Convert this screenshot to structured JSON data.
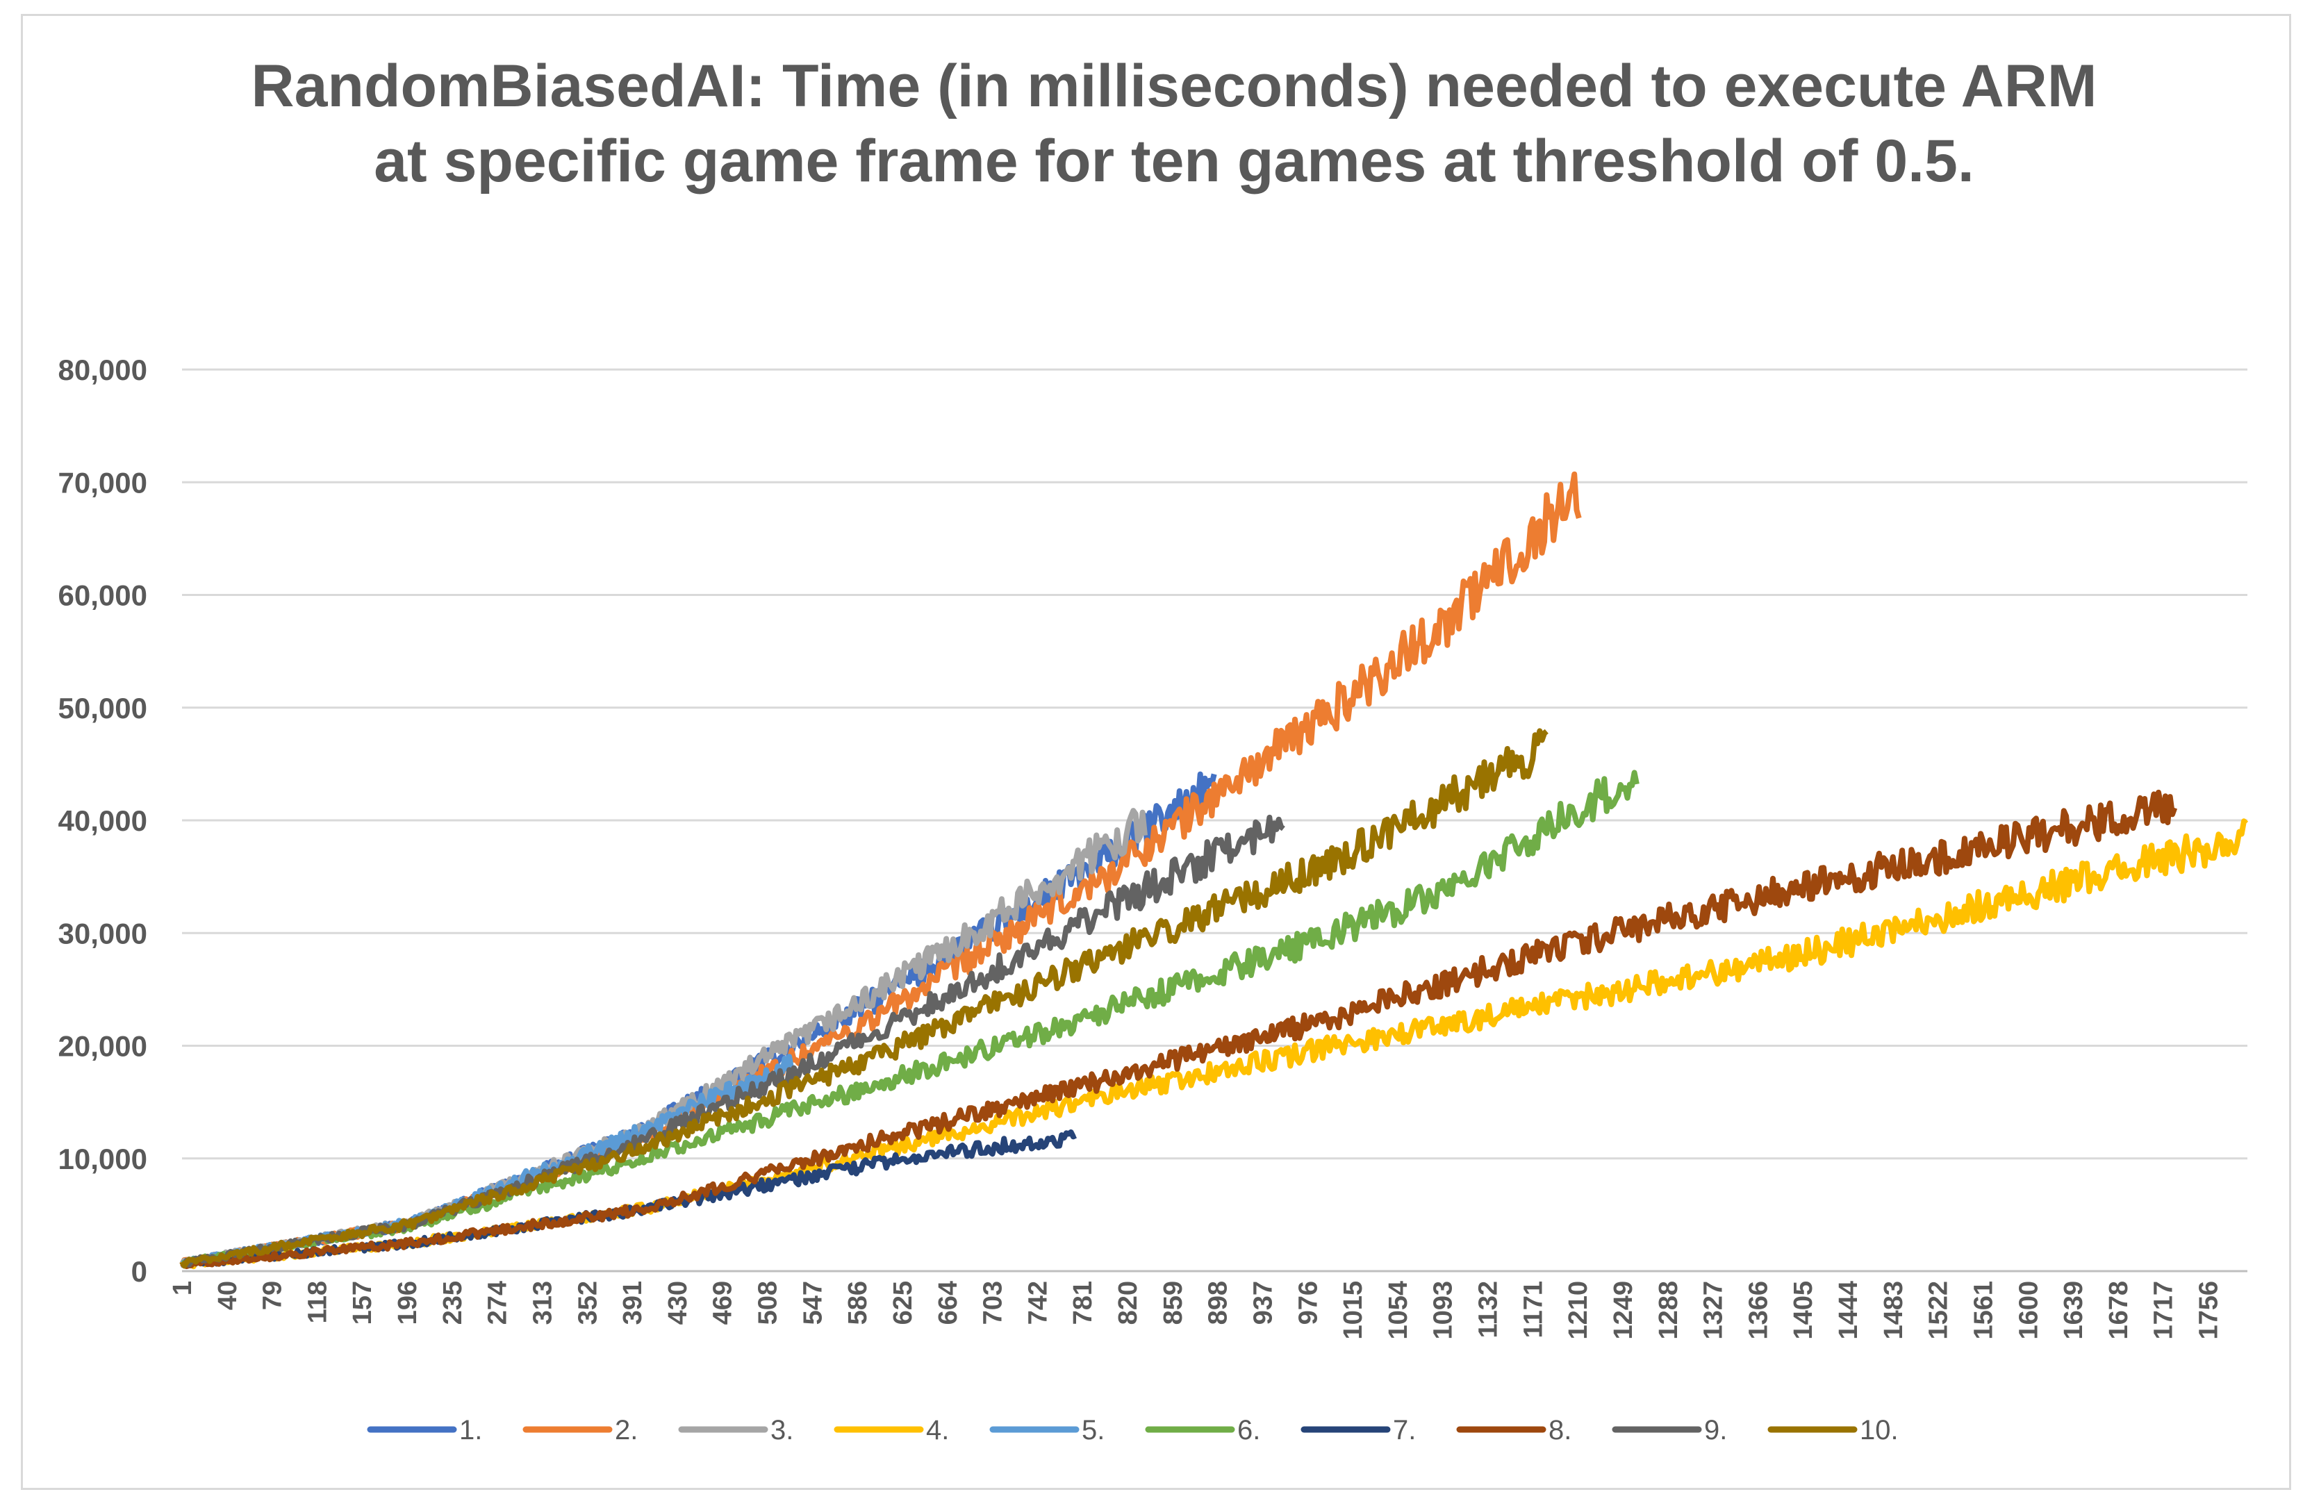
{
  "chart_data": {
    "type": "line",
    "title": "RandomBiasedAI: Time (in milliseconds) needed to execute ARM at specific game frame for ten games at threshold of 0.5.",
    "xlabel": "",
    "ylabel": "",
    "ylim": [
      0,
      80000
    ],
    "xlim": [
      1,
      1790
    ],
    "y_ticks": [
      "0",
      "10,000",
      "20,000",
      "30,000",
      "40,000",
      "50,000",
      "60,000",
      "70,000",
      "80,000"
    ],
    "y_tick_values": [
      0,
      10000,
      20000,
      30000,
      40000,
      50000,
      60000,
      70000,
      80000
    ],
    "x_ticks": [
      "1",
      "40",
      "79",
      "118",
      "157",
      "196",
      "235",
      "274",
      "313",
      "352",
      "391",
      "430",
      "469",
      "508",
      "547",
      "586",
      "625",
      "664",
      "703",
      "742",
      "781",
      "820",
      "859",
      "898",
      "937",
      "976",
      "1015",
      "1054",
      "1093",
      "1132",
      "1171",
      "1210",
      "1249",
      "1288",
      "1327",
      "1366",
      "1405",
      "1444",
      "1483",
      "1522",
      "1561",
      "1600",
      "1639",
      "1678",
      "1717",
      "1756"
    ],
    "grid": true,
    "legend_position": "bottom",
    "series": [
      {
        "name": "1.",
        "color": "#4472c4",
        "x": [
          1,
          200,
          400,
          600,
          800,
          895
        ],
        "y": [
          700,
          4200,
          12500,
          24000,
          36500,
          43500
        ]
      },
      {
        "name": "2.",
        "color": "#ed7d31",
        "x": [
          1,
          200,
          400,
          600,
          800,
          1000,
          1100,
          1212
        ],
        "y": [
          700,
          4200,
          12000,
          22500,
          35000,
          50000,
          58000,
          69500
        ]
      },
      {
        "name": "3.",
        "color": "#a5a5a5",
        "x": [
          1,
          200,
          400,
          600,
          700,
          836
        ],
        "y": [
          700,
          4300,
          12500,
          24500,
          31000,
          40000
        ]
      },
      {
        "name": "4.",
        "color": "#ffc000",
        "x": [
          1,
          200,
          400,
          600,
          800,
          1000,
          1200,
          1400,
          1600,
          1790
        ],
        "y": [
          600,
          2500,
          5500,
          10500,
          15500,
          20000,
          24000,
          28000,
          33500,
          38500
        ]
      },
      {
        "name": "5.",
        "color": "#5b9bd5",
        "x": [
          1,
          200,
          400,
          530
        ],
        "y": [
          700,
          4300,
          12500,
          18500
        ]
      },
      {
        "name": "6.",
        "color": "#70ad47",
        "x": [
          1,
          200,
          400,
          600,
          800,
          1000,
          1100,
          1262
        ],
        "y": [
          700,
          4000,
          10000,
          16500,
          23000,
          30000,
          34000,
          44000
        ]
      },
      {
        "name": "7.",
        "color": "#264478",
        "x": [
          1,
          200,
          400,
          600,
          700,
          776
        ],
        "y": [
          600,
          2500,
          5500,
          9500,
          11000,
          11800
        ]
      },
      {
        "name": "8.",
        "color": "#9e480e",
        "x": [
          1,
          200,
          400,
          600,
          800,
          1000,
          1200,
          1400,
          1600,
          1727
        ],
        "y": [
          600,
          2500,
          5500,
          11500,
          17000,
          22500,
          29000,
          34000,
          38500,
          41500
        ]
      },
      {
        "name": "9.",
        "color": "#636363",
        "x": [
          1,
          200,
          400,
          600,
          800,
          955
        ],
        "y": [
          700,
          4200,
          11500,
          21000,
          32000,
          40000
        ]
      },
      {
        "name": "10.",
        "color": "#997300",
        "x": [
          1,
          200,
          400,
          600,
          800,
          1000,
          1183
        ],
        "y": [
          700,
          4200,
          11000,
          19000,
          28000,
          36500,
          46500
        ]
      }
    ]
  }
}
